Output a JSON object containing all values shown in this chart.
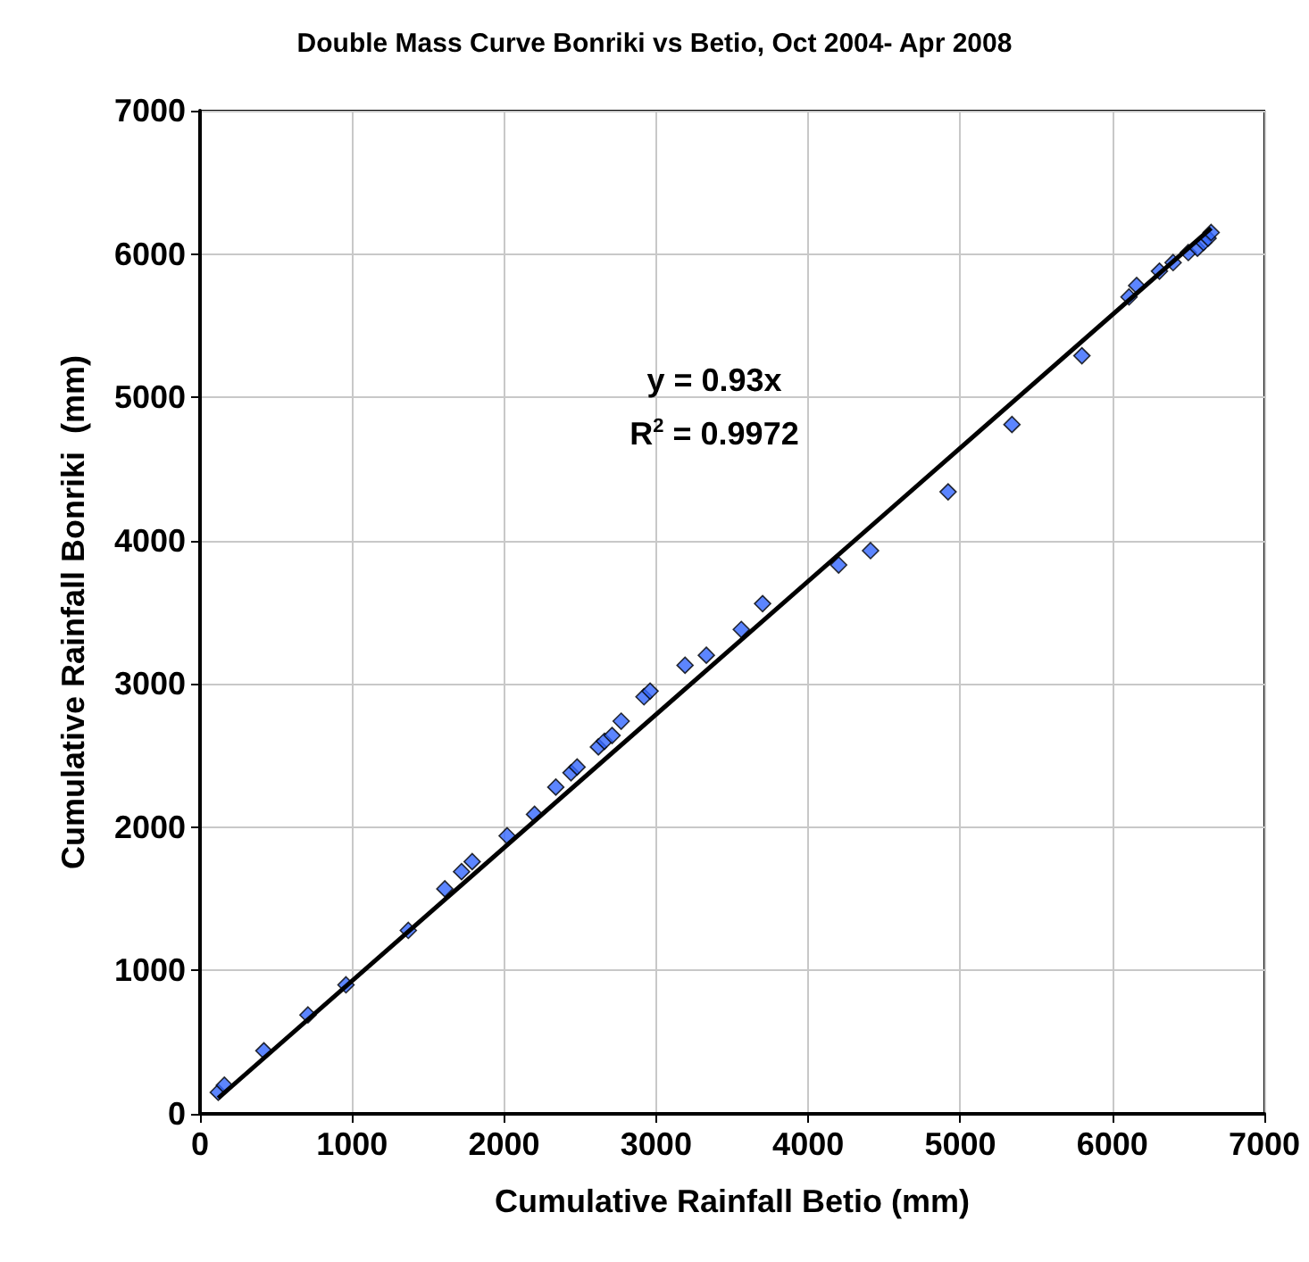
{
  "chart_data": {
    "type": "scatter",
    "title": "Double Mass Curve Bonriki vs Betio, Oct 2004- Apr 2008",
    "xlabel": "Cumulative Rainfall Betio (mm)",
    "ylabel": "Cumulative Rainfall Bonriki  (mm)",
    "annotations": [
      "y = 0.93x",
      "R$^{2}$ = 0.9972"
    ],
    "series": [
      {
        "type": "scatter",
        "color": "#3366ff",
        "marker": "diamond",
        "x": [
          120,
          160,
          420,
          710,
          960,
          1370,
          1610,
          1720,
          1790,
          2020,
          2200,
          2340,
          2440,
          2480,
          2620,
          2660,
          2710,
          2770,
          2920,
          2960,
          3190,
          3330,
          3560,
          3700,
          4200,
          4410,
          4920,
          5340,
          5800,
          6110,
          6160,
          6310,
          6400,
          6500,
          6560,
          6600,
          6630,
          6650
        ],
        "values": [
          150,
          200,
          440,
          690,
          900,
          1280,
          1570,
          1690,
          1760,
          1940,
          2090,
          2280,
          2380,
          2420,
          2560,
          2600,
          2640,
          2740,
          2910,
          2950,
          3130,
          3200,
          3380,
          3560,
          3830,
          3930,
          4340,
          4810,
          5290,
          5700,
          5780,
          5880,
          5940,
          6010,
          6040,
          6080,
          6110,
          6150
        ]
      },
      {
        "type": "line",
        "color": "#000000",
        "marker": "none",
        "x": [
          120,
          6650
        ],
        "values": [
          110,
          6180
        ]
      }
    ],
    "xlim": [
      0,
      7000
    ],
    "xticks": [
      0,
      1000,
      2000,
      3000,
      4000,
      5000,
      6000,
      7000
    ],
    "ylim": [
      0,
      7000
    ],
    "yticks": [
      0,
      1000,
      2000,
      3000,
      4000,
      5000,
      6000,
      7000
    ],
    "grid": true
  }
}
